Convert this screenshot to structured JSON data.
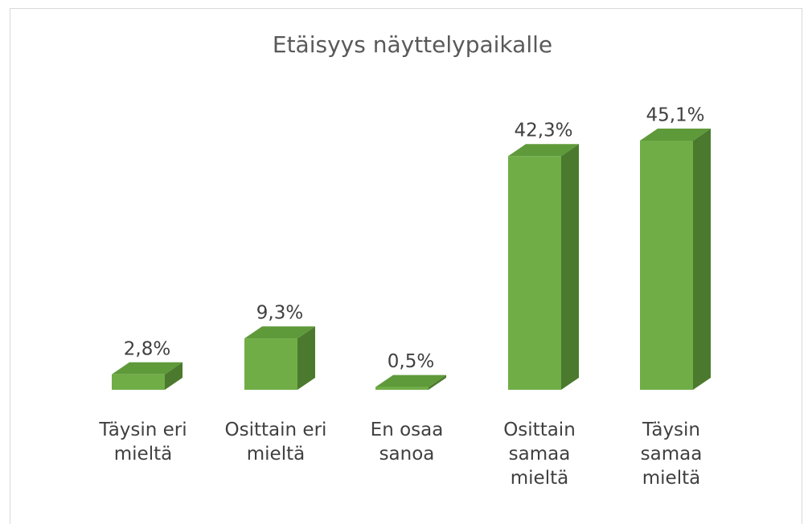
{
  "chart_data": {
    "type": "bar3d",
    "title": "Etäisyys näyttelypaikalle",
    "categories": [
      "Täysin eri mieltä",
      "Osittain eri mieltä",
      "En osaa sanoa",
      "Osittain samaa mieltä",
      "Täysin samaa mieltä"
    ],
    "values": [
      2.8,
      9.3,
      0.5,
      42.3,
      45.1
    ],
    "value_labels": [
      "2,8%",
      "9,3%",
      "0,5%",
      "42,3%",
      "45,1%"
    ],
    "color": "#70ad47"
  }
}
